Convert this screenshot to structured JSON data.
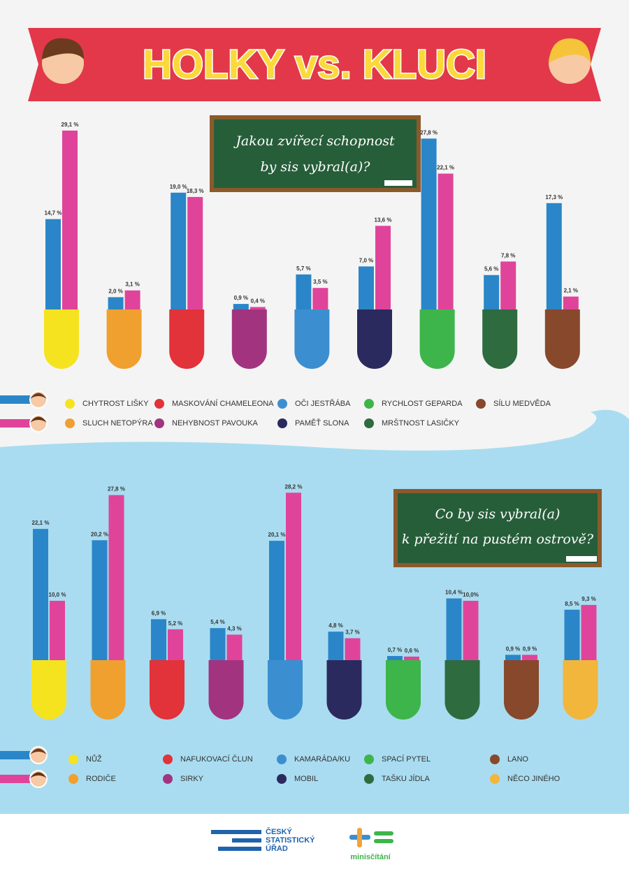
{
  "header": {
    "title": "HOLKY vs. KLUCI"
  },
  "chart_data": [
    {
      "type": "bar",
      "title": [
        "Jakou zvířecí schopnost",
        "by sis vybral(a)?"
      ],
      "categories": [
        "CHYTROST LIŠKY",
        "SLUCH NETOPÝRA",
        "MASKOVÁNÍ CHAMELEONA",
        "NEHYBNOST PAVOUKA",
        "OČI JESTŘÁBA",
        "PAMĚŤ SLONA",
        "RYCHLOST GEPARDA",
        "MRŠTNOST LASIČKY",
        "SÍLU MEDVĚDA"
      ],
      "category_colors": [
        "#f6e31f",
        "#f0a02e",
        "#e2323a",
        "#a2347f",
        "#3b8fd0",
        "#2b2a5e",
        "#3db54a",
        "#2e6b3f",
        "#87482b"
      ],
      "series": [
        {
          "color": "#2a86c8",
          "values": [
            14.7,
            2.0,
            19.0,
            0.9,
            5.7,
            7.0,
            27.8,
            5.6,
            17.3
          ],
          "value_labels": [
            "14,7 %",
            "2,0 %",
            "19,0 %",
            "0,9 %",
            "5,7 %",
            "7,0 %",
            "27,8 %",
            "5,6 %",
            "17,3 %"
          ]
        },
        {
          "color": "#e0449a",
          "values": [
            29.1,
            3.1,
            18.3,
            0.4,
            3.5,
            13.6,
            22.1,
            7.8,
            2.1
          ],
          "value_labels": [
            "29,1 %",
            "3,1 %",
            "18,3 %",
            "0,4 %",
            "3,5 %",
            "13,6 %",
            "22,1 %",
            "7,8 %",
            "2,1 %"
          ]
        }
      ]
    },
    {
      "type": "bar",
      "title": [
        "Co by sis vybral(a)",
        "k přežití na pustém ostrově?"
      ],
      "categories": [
        "NŮŽ",
        "RODIČE",
        "NAFUKOVACÍ ČLUN",
        "SIRKY",
        "KAMARÁDA/KU",
        "MOBIL",
        "SPACÍ PYTEL",
        "TAŠKU JÍDLA",
        "LANO",
        "NĚCO JINÉHO"
      ],
      "category_colors": [
        "#f6e31f",
        "#f0a02e",
        "#e2323a",
        "#a2347f",
        "#3b8fd0",
        "#2b2a5e",
        "#3db54a",
        "#2e6b3f",
        "#87482b",
        "#f2b63c"
      ],
      "series": [
        {
          "color": "#2a86c8",
          "values": [
            22.1,
            20.2,
            6.9,
            5.4,
            20.1,
            4.8,
            0.7,
            10.4,
            0.9,
            8.5
          ],
          "value_labels": [
            "22,1 %",
            "20,2 %",
            "6,9 %",
            "5,4 %",
            "20,1 %",
            "4,8 %",
            "0,7 %",
            "10,4 %",
            "0,9 %",
            "8,5 %"
          ]
        },
        {
          "color": "#e0449a",
          "values": [
            10.0,
            27.8,
            5.2,
            4.3,
            28.2,
            3.7,
            0.6,
            10.0,
            0.9,
            9.3
          ],
          "value_labels": [
            "10,0 %",
            "27,8 %",
            "5,2 %",
            "4,3 %",
            "28,2 %",
            "3,7 %",
            "0,6 %",
            "10,0%",
            "0,9 %",
            "9,3 %"
          ]
        }
      ]
    }
  ],
  "footer": {
    "logo_1": [
      "ČESKÝ",
      "STATISTICKÝ",
      "ÚŘAD"
    ],
    "logo_2": "minisčítání"
  }
}
